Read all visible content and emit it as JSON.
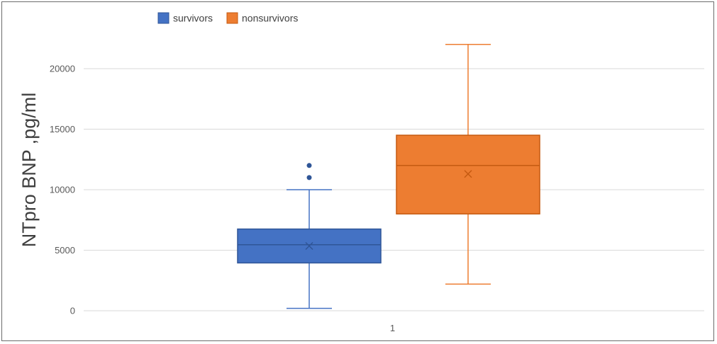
{
  "chart_data": {
    "type": "box",
    "title": "",
    "xlabel": "",
    "ylabel": "NTpro BNP ,pg/ml",
    "categories": [
      "1"
    ],
    "ylim": [
      0,
      22000
    ],
    "yticks": [
      0,
      5000,
      10000,
      15000,
      20000
    ],
    "grid": true,
    "legend_position": "top-left",
    "series": [
      {
        "name": "survivors",
        "color": "#4472C4",
        "stroke": "#2F5597",
        "min": 200,
        "q1": 3950,
        "median": 5450,
        "q3": 6750,
        "max": 10000,
        "mean": 5350,
        "outliers": [
          11000,
          12000
        ]
      },
      {
        "name": "nonsurvivors",
        "color": "#ED7D31",
        "stroke": "#C55A11",
        "min": 2200,
        "q1": 8000,
        "median": 12000,
        "q3": 14500,
        "max": 22000,
        "mean": 11300,
        "outliers": []
      }
    ]
  }
}
